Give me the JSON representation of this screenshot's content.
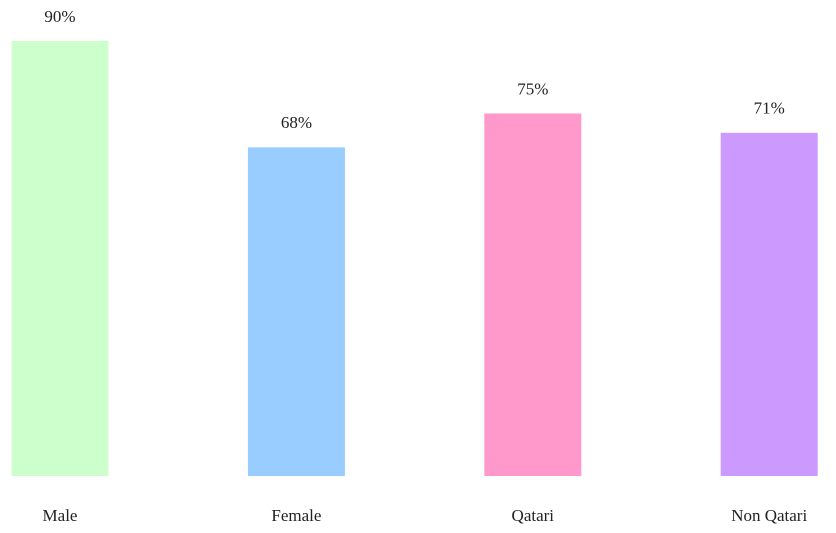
{
  "chart_data": {
    "type": "bar",
    "categories": [
      "Male",
      "Female",
      "Qatari",
      "Non Qatari"
    ],
    "values": [
      90,
      68,
      75,
      71
    ],
    "value_labels": [
      "90%",
      "68%",
      "75%",
      "71%"
    ],
    "colors": [
      "#ccffcc",
      "#99ccff",
      "#ff99cc",
      "#cc99ff"
    ],
    "ylim": [
      0,
      90
    ]
  }
}
